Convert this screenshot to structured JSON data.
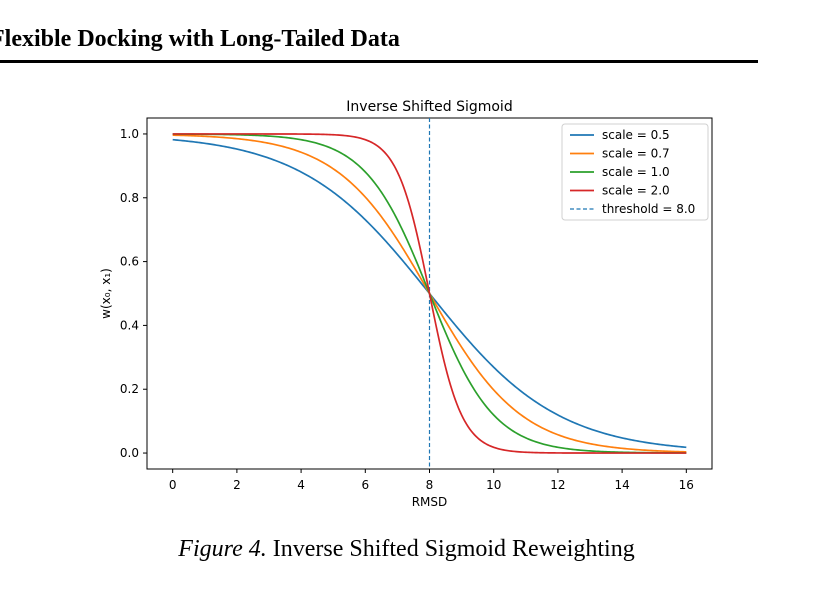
{
  "header": {
    "title": "Flexible Docking with Long-Tailed Data"
  },
  "caption": {
    "label": "Figure 4.",
    "text": "Inverse Shifted Sigmoid Reweighting"
  },
  "chart_data": {
    "type": "line",
    "title": "Inverse Shifted Sigmoid",
    "xlabel": "RMSD",
    "ylabel": "w(x₀, x₁)",
    "xlim": [
      -0.8,
      16.8
    ],
    "ylim": [
      -0.05,
      1.05
    ],
    "xticks": [
      0,
      2,
      4,
      6,
      8,
      10,
      12,
      14,
      16
    ],
    "yticks": [
      0.0,
      0.2,
      0.4,
      0.6,
      0.8,
      1.0
    ],
    "xtick_labels": [
      "0",
      "2",
      "4",
      "6",
      "8",
      "10",
      "12",
      "14",
      "16"
    ],
    "ytick_labels": [
      "0.0",
      "0.2",
      "0.4",
      "0.6",
      "0.8",
      "1.0"
    ],
    "grid": false,
    "legend_position": "top-right",
    "function": "1 / (1 + exp(scale * (x - threshold)))",
    "x_range": [
      0,
      16
    ],
    "threshold": 8.0,
    "threshold_label": "threshold = 8.0",
    "series": [
      {
        "name": "scale = 0.5",
        "scale": 0.5,
        "color": "#1f77b4"
      },
      {
        "name": "scale = 0.7",
        "scale": 0.7,
        "color": "#ff7f0e"
      },
      {
        "name": "scale = 1.0",
        "scale": 1.0,
        "color": "#2ca02c"
      },
      {
        "name": "scale = 2.0",
        "scale": 2.0,
        "color": "#d62728"
      }
    ],
    "threshold_color": "#1f77b4"
  }
}
